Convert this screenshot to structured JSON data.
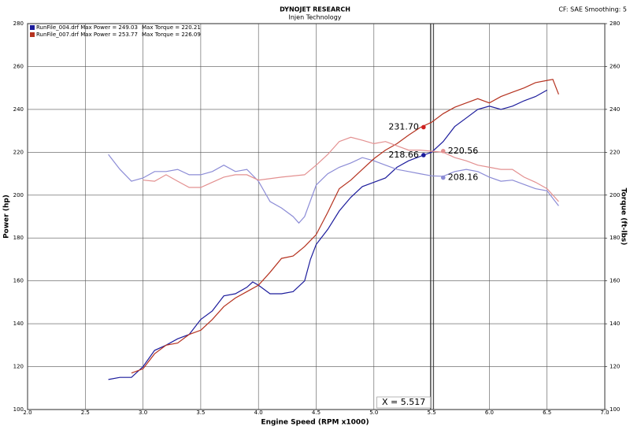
{
  "chart_data": {
    "type": "line",
    "title": "DYNOJET RESEARCH",
    "subtitle": "Injen Technology",
    "settings_text": "CF: SAE  Smoothing: 5",
    "x_label": "Engine Speed (RPM x1000)",
    "y_label": "Power (hp)",
    "y2_label": "Torque (ft-lbs)",
    "xlim": [
      2.0,
      7.0
    ],
    "xticks": [
      {
        "value": 2,
        "label": "2.0"
      },
      {
        "value": 2.5,
        "label": "2.5"
      },
      {
        "value": 3,
        "label": "3.0"
      },
      {
        "value": 3.5,
        "label": "3.5"
      },
      {
        "value": 4,
        "label": "4.0"
      },
      {
        "value": 4.5,
        "label": "4.5"
      },
      {
        "value": 5,
        "label": "5.0"
      },
      {
        "value": 5.5,
        "label": "5.5"
      },
      {
        "value": 6,
        "label": "6.0"
      },
      {
        "value": 6.5,
        "label": "6.5"
      },
      {
        "value": 7,
        "label": "7.0"
      }
    ],
    "ylim": [
      100,
      280
    ],
    "yticks": [
      100,
      120,
      140,
      160,
      180,
      200,
      220,
      240,
      260,
      280
    ],
    "y2lim": [
      100,
      280
    ],
    "y2ticks": [
      100,
      120,
      140,
      160,
      180,
      200,
      220,
      240,
      260,
      280
    ],
    "grid": true,
    "series": [
      {
        "name": "RunFile_004.drf Max Power = 249.03",
        "color": "#1c1c9c",
        "axis": "y",
        "x": [
          2.7,
          2.8,
          2.9,
          3.0,
          3.1,
          3.2,
          3.3,
          3.4,
          3.5,
          3.6,
          3.7,
          3.8,
          3.9,
          3.95,
          4.0,
          4.1,
          4.2,
          4.3,
          4.4,
          4.45,
          4.5,
          4.6,
          4.7,
          4.8,
          4.9,
          5.0,
          5.1,
          5.2,
          5.3,
          5.43,
          5.5,
          5.6,
          5.7,
          5.8,
          5.9,
          6.0,
          6.1,
          6.2,
          6.3,
          6.4,
          6.5
        ],
        "values": [
          114,
          115,
          115,
          120,
          127.6,
          130,
          133,
          135,
          142,
          146,
          153,
          154,
          157,
          159.5,
          158,
          154,
          154,
          155,
          160,
          170,
          177,
          184,
          192.6,
          199,
          204,
          206,
          208,
          213,
          216,
          218.66,
          220,
          225,
          232,
          236,
          240,
          241.5,
          240,
          241.5,
          244,
          246,
          249
        ]
      },
      {
        "name": "Max Torque = 220.21",
        "color": "#8c8cd6",
        "axis": "y2",
        "x": [
          2.7,
          2.8,
          2.9,
          3.0,
          3.1,
          3.2,
          3.3,
          3.4,
          3.5,
          3.6,
          3.7,
          3.8,
          3.9,
          4.0,
          4.1,
          4.2,
          4.3,
          4.35,
          4.4,
          4.5,
          4.6,
          4.7,
          4.8,
          4.9,
          5.0,
          5.1,
          5.2,
          5.3,
          5.4,
          5.5,
          5.6,
          5.7,
          5.8,
          5.9,
          6.0,
          6.1,
          6.2,
          6.3,
          6.4,
          6.5,
          6.6
        ],
        "values": [
          219,
          212,
          206.5,
          208,
          211,
          211,
          212,
          209.5,
          209.5,
          211,
          214,
          211,
          212,
          206.5,
          197,
          194,
          190,
          187,
          190,
          204.7,
          210,
          213,
          215,
          217.5,
          216,
          214,
          212,
          211,
          210,
          209,
          208.8,
          211,
          212,
          211,
          208.4,
          206.5,
          207,
          205,
          203,
          202,
          195
        ]
      },
      {
        "name": "RunFile_007.drf Max Power = 253.77",
        "color": "#b5321f",
        "axis": "y",
        "x": [
          2.9,
          3.0,
          3.1,
          3.2,
          3.3,
          3.4,
          3.5,
          3.6,
          3.7,
          3.8,
          3.9,
          4.0,
          4.1,
          4.2,
          4.3,
          4.4,
          4.5,
          4.6,
          4.7,
          4.8,
          4.9,
          5.0,
          5.1,
          5.2,
          5.3,
          5.4,
          5.5,
          5.6,
          5.7,
          5.8,
          5.9,
          6.0,
          6.1,
          6.2,
          6.3,
          6.4,
          6.5,
          6.55,
          6.6
        ],
        "values": [
          117,
          119,
          126,
          130,
          131,
          135,
          137,
          142,
          148,
          152,
          155,
          158,
          164,
          170.5,
          171.6,
          176,
          181.6,
          192,
          203,
          207,
          212,
          217,
          221,
          224,
          228,
          231.5,
          234,
          238,
          241,
          243,
          245,
          243,
          246,
          248,
          250,
          252.5,
          253.5,
          254,
          247
        ]
      },
      {
        "name": "Max Torque = 226.09",
        "color": "#e39090",
        "axis": "y2",
        "x": [
          3.0,
          3.1,
          3.2,
          3.3,
          3.4,
          3.5,
          3.6,
          3.7,
          3.8,
          3.9,
          4.0,
          4.2,
          4.4,
          4.5,
          4.6,
          4.7,
          4.8,
          4.9,
          5.0,
          5.1,
          5.2,
          5.3,
          5.4,
          5.5,
          5.6,
          5.7,
          5.8,
          5.9,
          6.0,
          6.1,
          6.2,
          6.3,
          6.4,
          6.5,
          6.6
        ],
        "values": [
          207,
          206.5,
          209.5,
          206.5,
          203.6,
          203.6,
          206,
          208.4,
          209.5,
          209.5,
          207,
          208.4,
          209.5,
          214,
          219,
          225,
          227,
          225.6,
          224,
          225,
          223,
          221,
          221,
          220.5,
          220,
          217.5,
          216,
          214,
          213,
          212,
          212,
          208.4,
          206,
          203,
          197
        ]
      }
    ],
    "markers": [
      {
        "x": 5.43,
        "y": 231.7,
        "label": "231.70",
        "color": "#d02020",
        "axis": "y"
      },
      {
        "x": 5.43,
        "y": 218.66,
        "label": "218.66",
        "color": "#1c1c9c",
        "axis": "y"
      },
      {
        "x": 5.6,
        "y": 220.56,
        "label": "220.56",
        "color": "#e39090",
        "axis": "y2"
      },
      {
        "x": 5.6,
        "y": 208.16,
        "label": "208.16",
        "color": "#8c8cd6",
        "axis": "y2"
      }
    ],
    "cursor": {
      "value": 5.517,
      "label": "X = 5.517"
    }
  }
}
